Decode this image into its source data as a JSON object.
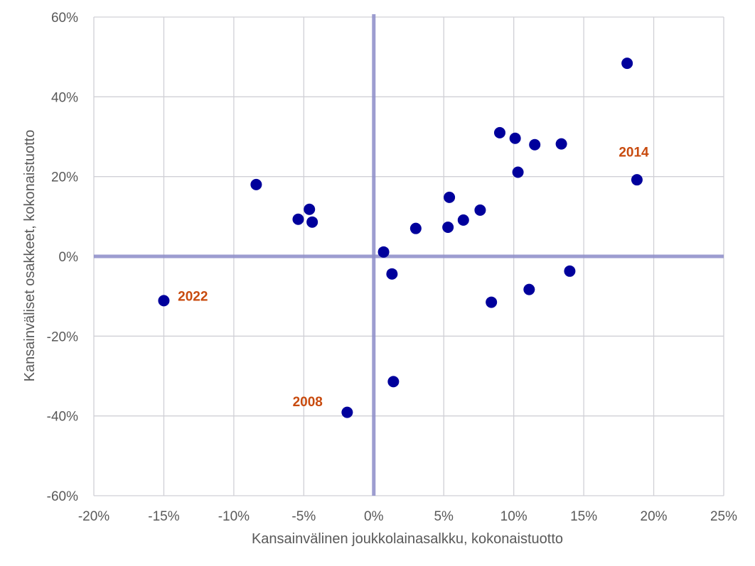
{
  "chart_data": {
    "type": "scatter",
    "title": "",
    "xlabel": "Kansainvälinen joukkolainasalkku, kokonaistuotto",
    "ylabel": "Kansainväliset osakkeet, kokonaistuotto",
    "xlim": [
      -20,
      25
    ],
    "ylim": [
      -60,
      60
    ],
    "x_ticks": [
      -20,
      -15,
      -10,
      -5,
      0,
      5,
      10,
      15,
      20,
      25
    ],
    "y_ticks": [
      -60,
      -40,
      -20,
      0,
      20,
      40,
      60
    ],
    "x_tick_labels": [
      "-20%",
      "-15%",
      "-10%",
      "-5%",
      "0%",
      "5%",
      "10%",
      "15%",
      "20%",
      "25%"
    ],
    "y_tick_labels": [
      "-60%",
      "-40%",
      "-20%",
      "0%",
      "20%",
      "40%",
      "60%"
    ],
    "grid": true,
    "legend": "none",
    "colors": {
      "marker": "#00009c",
      "annotation": "#c84b0f",
      "zero_line": "#8c8cc8",
      "grid": "#d0d0d6"
    },
    "points": [
      {
        "x": 18.1,
        "y": 48.4
      },
      {
        "x": 9.0,
        "y": 31.0
      },
      {
        "x": 10.1,
        "y": 29.6
      },
      {
        "x": 11.5,
        "y": 28.0
      },
      {
        "x": 13.4,
        "y": 28.2
      },
      {
        "x": 10.3,
        "y": 21.1
      },
      {
        "x": 18.8,
        "y": 19.2
      },
      {
        "x": -8.4,
        "y": 18.0
      },
      {
        "x": 5.4,
        "y": 14.8
      },
      {
        "x": 7.6,
        "y": 11.6
      },
      {
        "x": -4.6,
        "y": 11.8
      },
      {
        "x": -5.4,
        "y": 9.3
      },
      {
        "x": -4.4,
        "y": 8.6
      },
      {
        "x": 6.4,
        "y": 9.1
      },
      {
        "x": 3.0,
        "y": 7.0
      },
      {
        "x": 5.3,
        "y": 7.3
      },
      {
        "x": 0.7,
        "y": 1.1
      },
      {
        "x": 1.3,
        "y": -4.4
      },
      {
        "x": 14.0,
        "y": -3.7
      },
      {
        "x": 11.1,
        "y": -8.3
      },
      {
        "x": 8.4,
        "y": -11.5
      },
      {
        "x": -15.0,
        "y": -11.1
      },
      {
        "x": 1.4,
        "y": -31.4
      },
      {
        "x": -1.9,
        "y": -39.1
      }
    ],
    "annotations": [
      {
        "text": "2014",
        "x": 17.5,
        "y": 25.0
      },
      {
        "text": "2022",
        "x": -14.0,
        "y": -11.1
      },
      {
        "text": "2008",
        "x": -5.8,
        "y": -37.6
      }
    ]
  }
}
